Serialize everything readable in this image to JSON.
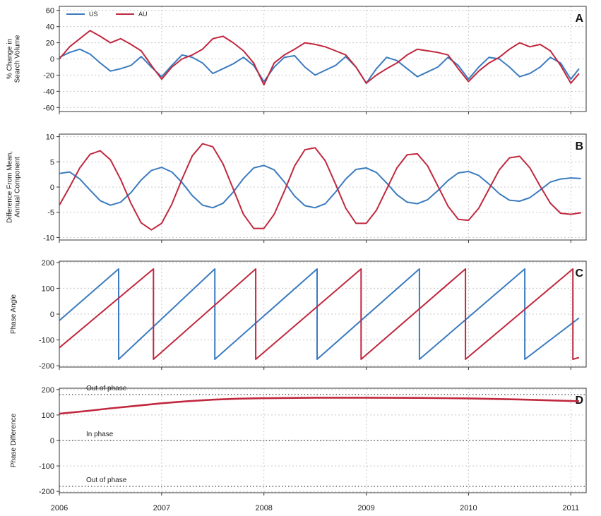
{
  "colors": {
    "us": "#3b7bbf",
    "au": "#c0283e",
    "grid": "#c8c8c8",
    "axis": "#333333"
  },
  "x_axis": {
    "range": [
      2006,
      2011.15
    ],
    "ticks": [
      2006,
      2007,
      2008,
      2009,
      2010,
      2011
    ]
  },
  "legend": {
    "placement": "top-left",
    "items": [
      {
        "label": "US",
        "color": "#3b7bbf"
      },
      {
        "label": "AU",
        "color": "#c0283e"
      }
    ]
  },
  "chart_data": [
    {
      "panel": "A",
      "type": "line",
      "ylabel": [
        "% Change in",
        "Search Volume"
      ],
      "ylim": [
        -65,
        65
      ],
      "yticks": [
        -60,
        -40,
        -20,
        0,
        20,
        40,
        60
      ],
      "grid": true,
      "series": [
        {
          "name": "US",
          "color": "#3b7bbf",
          "x": [
            2006.0,
            2006.1,
            2006.2,
            2006.3,
            2006.4,
            2006.5,
            2006.6,
            2006.7,
            2006.8,
            2006.9,
            2007.0,
            2007.1,
            2007.2,
            2007.3,
            2007.4,
            2007.5,
            2007.6,
            2007.7,
            2007.8,
            2007.9,
            2008.0,
            2008.1,
            2008.2,
            2008.3,
            2008.4,
            2008.5,
            2008.6,
            2008.7,
            2008.8,
            2008.9,
            2009.0,
            2009.1,
            2009.2,
            2009.3,
            2009.4,
            2009.5,
            2009.6,
            2009.7,
            2009.8,
            2009.9,
            2010.0,
            2010.1,
            2010.2,
            2010.3,
            2010.4,
            2010.5,
            2010.6,
            2010.7,
            2010.8,
            2010.9,
            2011.0,
            2011.08
          ],
          "values": [
            2,
            8,
            12,
            6,
            -5,
            -15,
            -12,
            -8,
            3,
            -10,
            -22,
            -8,
            5,
            2,
            -5,
            -18,
            -12,
            -6,
            2,
            -8,
            -28,
            -10,
            2,
            4,
            -10,
            -20,
            -14,
            -8,
            3,
            -10,
            -30,
            -12,
            2,
            -2,
            -12,
            -22,
            -16,
            -10,
            2,
            -8,
            -25,
            -10,
            2,
            0,
            -10,
            -22,
            -18,
            -10,
            2,
            -5,
            -25,
            -12
          ]
        },
        {
          "name": "AU",
          "color": "#c0283e",
          "x": [
            2006.0,
            2006.1,
            2006.2,
            2006.3,
            2006.4,
            2006.5,
            2006.6,
            2006.7,
            2006.8,
            2006.9,
            2007.0,
            2007.1,
            2007.2,
            2007.3,
            2007.4,
            2007.5,
            2007.6,
            2007.7,
            2007.8,
            2007.9,
            2008.0,
            2008.1,
            2008.2,
            2008.3,
            2008.4,
            2008.5,
            2008.6,
            2008.7,
            2008.8,
            2008.9,
            2009.0,
            2009.1,
            2009.2,
            2009.3,
            2009.4,
            2009.5,
            2009.6,
            2009.7,
            2009.8,
            2009.9,
            2010.0,
            2010.1,
            2010.2,
            2010.3,
            2010.4,
            2010.5,
            2010.6,
            2010.7,
            2010.8,
            2010.9,
            2011.0,
            2011.08
          ],
          "values": [
            0,
            15,
            25,
            35,
            28,
            20,
            25,
            18,
            10,
            -8,
            -25,
            -10,
            0,
            5,
            12,
            25,
            28,
            20,
            10,
            -5,
            -32,
            -5,
            5,
            12,
            20,
            18,
            15,
            10,
            5,
            -10,
            -30,
            -20,
            -12,
            -5,
            5,
            12,
            10,
            8,
            5,
            -12,
            -28,
            -15,
            -5,
            2,
            12,
            20,
            15,
            18,
            10,
            -8,
            -30,
            -18
          ]
        }
      ]
    },
    {
      "panel": "B",
      "type": "line",
      "ylabel": [
        "Difference From Mean,",
        "Annual Component"
      ],
      "ylim": [
        -10.5,
        10.5
      ],
      "yticks": [
        -10,
        -5,
        0,
        5,
        10
      ],
      "grid": true,
      "series": [
        {
          "name": "US",
          "color": "#3b7bbf",
          "x": [
            2006.0,
            2006.1,
            2006.2,
            2006.3,
            2006.4,
            2006.5,
            2006.6,
            2006.7,
            2006.8,
            2006.9,
            2007.0,
            2007.1,
            2007.2,
            2007.3,
            2007.4,
            2007.5,
            2007.6,
            2007.7,
            2007.8,
            2007.9,
            2008.0,
            2008.1,
            2008.2,
            2008.3,
            2008.4,
            2008.5,
            2008.6,
            2008.7,
            2008.8,
            2008.9,
            2009.0,
            2009.1,
            2009.2,
            2009.3,
            2009.4,
            2009.5,
            2009.6,
            2009.7,
            2009.8,
            2009.9,
            2010.0,
            2010.1,
            2010.2,
            2010.3,
            2010.4,
            2010.5,
            2010.6,
            2010.7,
            2010.8,
            2010.9,
            2011.0,
            2011.1
          ],
          "values": [
            2.7,
            3.0,
            1.6,
            -0.6,
            -2.7,
            -3.6,
            -3.0,
            -1.1,
            1.4,
            3.3,
            3.9,
            3.0,
            0.9,
            -1.7,
            -3.6,
            -4.1,
            -3.2,
            -1.0,
            1.7,
            3.8,
            4.3,
            3.4,
            1.0,
            -1.8,
            -3.7,
            -4.1,
            -3.3,
            -1.0,
            1.6,
            3.5,
            3.8,
            2.9,
            0.8,
            -1.5,
            -3.0,
            -3.3,
            -2.5,
            -0.7,
            1.3,
            2.8,
            3.1,
            2.3,
            0.6,
            -1.3,
            -2.6,
            -2.8,
            -2.1,
            -0.6,
            1.0,
            1.6,
            1.8,
            1.7
          ]
        },
        {
          "name": "AU",
          "color": "#c0283e",
          "x": [
            2006.0,
            2006.1,
            2006.2,
            2006.3,
            2006.4,
            2006.5,
            2006.6,
            2006.7,
            2006.8,
            2006.9,
            2007.0,
            2007.1,
            2007.2,
            2007.3,
            2007.4,
            2007.5,
            2007.6,
            2007.7,
            2007.8,
            2007.9,
            2008.0,
            2008.1,
            2008.2,
            2008.3,
            2008.4,
            2008.5,
            2008.6,
            2008.7,
            2008.8,
            2008.9,
            2009.0,
            2009.1,
            2009.2,
            2009.3,
            2009.4,
            2009.5,
            2009.6,
            2009.7,
            2009.8,
            2009.9,
            2010.0,
            2010.1,
            2010.2,
            2010.3,
            2010.4,
            2010.5,
            2010.6,
            2010.7,
            2010.8,
            2010.9,
            2011.0,
            2011.1
          ],
          "values": [
            -3.6,
            0.0,
            3.8,
            6.5,
            7.2,
            5.4,
            1.5,
            -3.2,
            -7.1,
            -8.5,
            -7.2,
            -3.4,
            1.6,
            6.2,
            8.6,
            8.0,
            4.6,
            -0.4,
            -5.4,
            -8.2,
            -8.2,
            -5.4,
            -0.8,
            4.2,
            7.4,
            7.8,
            5.2,
            0.6,
            -4.2,
            -7.2,
            -7.2,
            -4.6,
            -0.4,
            3.8,
            6.4,
            6.6,
            4.2,
            0.2,
            -3.8,
            -6.4,
            -6.6,
            -4.2,
            -0.4,
            3.4,
            5.8,
            6.1,
            3.8,
            0.2,
            -3.2,
            -5.2,
            -5.4,
            -5.1
          ]
        }
      ]
    },
    {
      "panel": "C",
      "type": "line",
      "ylabel": [
        "Phase Angle"
      ],
      "ylim": [
        -205,
        205
      ],
      "yticks": [
        -200,
        -100,
        0,
        100,
        200
      ],
      "grid": true,
      "series": [
        {
          "name": "US",
          "color": "#3b7bbf",
          "x": [
            2006.0,
            2006.58,
            2006.58,
            2007.52,
            2007.52,
            2008.52,
            2008.52,
            2009.52,
            2009.52,
            2010.55,
            2010.55,
            2011.08
          ],
          "values": [
            -25,
            175,
            -175,
            175,
            -175,
            175,
            -175,
            175,
            -175,
            175,
            -175,
            -15
          ]
        },
        {
          "name": "AU",
          "color": "#c0283e",
          "x": [
            2006.0,
            2006.92,
            2006.92,
            2007.92,
            2007.92,
            2008.95,
            2008.95,
            2009.97,
            2009.97,
            2011.02,
            2011.02,
            2011.08
          ],
          "values": [
            -130,
            175,
            -175,
            175,
            -175,
            175,
            -175,
            175,
            -175,
            175,
            -175,
            -168
          ]
        }
      ]
    },
    {
      "panel": "D",
      "type": "line",
      "ylabel": [
        "Phase Difference"
      ],
      "ylim": [
        -205,
        205
      ],
      "yticks": [
        -200,
        -100,
        0,
        100,
        200
      ],
      "grid": true,
      "reference_lines": [
        {
          "y": 180,
          "label": "Out of phase"
        },
        {
          "y": 0,
          "label": "In phase"
        },
        {
          "y": -180,
          "label": "Out of phase"
        }
      ],
      "series": [
        {
          "name": "",
          "color": "#c0283e",
          "x": [
            2006.0,
            2006.25,
            2006.5,
            2006.75,
            2007.0,
            2007.25,
            2007.5,
            2007.75,
            2008.0,
            2008.5,
            2009.0,
            2009.5,
            2010.0,
            2010.5,
            2011.08
          ],
          "values": [
            105,
            115,
            126,
            136,
            146,
            154,
            160,
            164,
            166,
            168,
            168,
            167,
            165,
            161,
            154
          ]
        }
      ]
    }
  ]
}
